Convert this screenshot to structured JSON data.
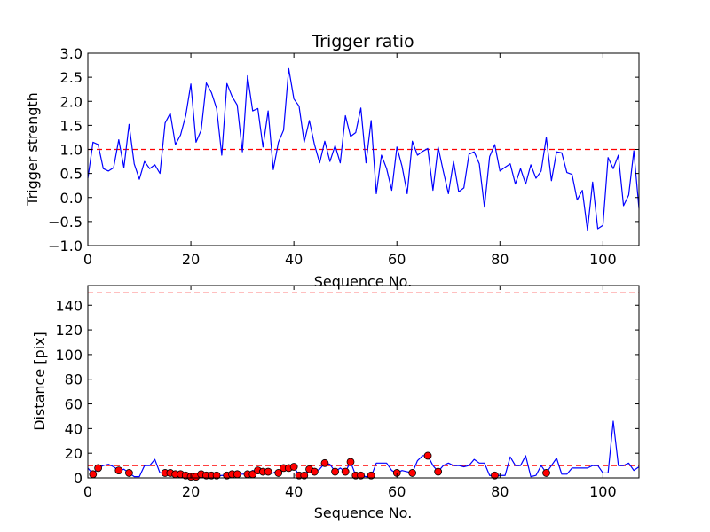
{
  "colors": {
    "line": "#0000ff",
    "threshold": "#ff0000",
    "marker_fill": "#ff0000",
    "marker_edge": "#000000"
  },
  "chart_data": [
    {
      "type": "line",
      "title": "Trigger ratio",
      "xlabel": "Sequence No.",
      "ylabel": "Trigger strength",
      "xlim": [
        0,
        107
      ],
      "ylim": [
        -1.0,
        3.0
      ],
      "xticks": [
        0,
        20,
        40,
        60,
        80,
        100
      ],
      "xtick_labels": [
        "0",
        "20",
        "40",
        "60",
        "80",
        "100"
      ],
      "yticks": [
        -1.0,
        -0.5,
        0.0,
        0.5,
        1.0,
        1.5,
        2.0,
        2.5,
        3.0
      ],
      "ytick_labels": [
        "−1.0",
        "−0.5",
        "0.0",
        "0.5",
        "1.0",
        "1.5",
        "2.0",
        "2.5",
        "3.0"
      ],
      "threshold": 1.0,
      "series": [
        {
          "name": "Trigger strength",
          "x": [
            0,
            1,
            2,
            3,
            4,
            5,
            6,
            7,
            8,
            9,
            10,
            11,
            12,
            13,
            14,
            15,
            16,
            17,
            18,
            19,
            20,
            21,
            22,
            23,
            24,
            25,
            26,
            27,
            28,
            29,
            30,
            31,
            32,
            33,
            34,
            35,
            36,
            37,
            38,
            39,
            40,
            41,
            42,
            43,
            44,
            45,
            46,
            47,
            48,
            49,
            50,
            51,
            52,
            53,
            54,
            55,
            56,
            57,
            58,
            59,
            60,
            61,
            62,
            63,
            64,
            65,
            66,
            67,
            68,
            69,
            70,
            71,
            72,
            73,
            74,
            75,
            76,
            77,
            78,
            79,
            80,
            81,
            82,
            83,
            84,
            85,
            86,
            87,
            88,
            89,
            90,
            91,
            92,
            93,
            94,
            95,
            96,
            97,
            98,
            99,
            100,
            101,
            102,
            103,
            104,
            105,
            106,
            107
          ],
          "values": [
            0.4,
            1.15,
            1.1,
            0.6,
            0.55,
            0.62,
            1.2,
            0.62,
            1.52,
            0.7,
            0.38,
            0.75,
            0.6,
            0.68,
            0.5,
            1.55,
            1.75,
            1.1,
            1.3,
            1.7,
            2.36,
            1.15,
            1.4,
            2.38,
            2.18,
            1.85,
            0.88,
            2.37,
            2.1,
            1.92,
            0.95,
            2.53,
            1.8,
            1.85,
            1.05,
            1.8,
            0.58,
            1.15,
            1.4,
            2.68,
            2.05,
            1.9,
            1.15,
            1.6,
            1.1,
            0.72,
            1.17,
            0.75,
            1.08,
            0.72,
            1.7,
            1.27,
            1.35,
            1.86,
            0.72,
            1.6,
            0.08,
            0.88,
            0.6,
            0.15,
            1.05,
            0.65,
            0.08,
            1.17,
            0.88,
            0.96,
            1.02,
            0.15,
            1.05,
            0.55,
            0.08,
            0.75,
            0.12,
            0.2,
            0.9,
            0.95,
            0.7,
            -0.2,
            0.85,
            1.1,
            0.55,
            0.63,
            0.7,
            0.28,
            0.6,
            0.28,
            0.68,
            0.4,
            0.55,
            1.25,
            0.35,
            0.95,
            0.93,
            0.52,
            0.48,
            -0.05,
            0.15,
            -0.68,
            0.32,
            -0.65,
            -0.58,
            0.83,
            0.6,
            0.88,
            -0.17,
            0.05,
            0.97,
            -0.23
          ]
        }
      ]
    },
    {
      "type": "line",
      "title": "",
      "xlabel": "Sequence No.",
      "ylabel": "Distance [pix]",
      "xlim": [
        0,
        107
      ],
      "ylim": [
        0,
        156
      ],
      "xticks": [
        0,
        20,
        40,
        60,
        80,
        100
      ],
      "xtick_labels": [
        "0",
        "20",
        "40",
        "60",
        "80",
        "100"
      ],
      "yticks": [
        0,
        20,
        40,
        60,
        80,
        100,
        120,
        140
      ],
      "ytick_labels": [
        "0",
        "20",
        "40",
        "60",
        "80",
        "100",
        "120",
        "140"
      ],
      "thresholds": [
        150,
        10
      ],
      "series": [
        {
          "name": "Distance",
          "x": [
            0,
            1,
            2,
            3,
            4,
            5,
            6,
            7,
            8,
            9,
            10,
            11,
            12,
            13,
            14,
            15,
            16,
            17,
            18,
            19,
            20,
            21,
            22,
            23,
            24,
            25,
            26,
            27,
            28,
            29,
            30,
            31,
            32,
            33,
            34,
            35,
            36,
            37,
            38,
            39,
            40,
            41,
            42,
            43,
            44,
            45,
            46,
            47,
            48,
            49,
            50,
            51,
            52,
            53,
            54,
            55,
            56,
            57,
            58,
            59,
            60,
            61,
            62,
            63,
            64,
            65,
            66,
            67,
            68,
            69,
            70,
            71,
            72,
            73,
            74,
            75,
            76,
            77,
            78,
            79,
            80,
            81,
            82,
            83,
            84,
            85,
            86,
            87,
            88,
            89,
            90,
            91,
            92,
            93,
            94,
            95,
            96,
            97,
            98,
            99,
            100,
            101,
            102,
            103,
            104,
            105,
            106,
            107
          ],
          "values": [
            8,
            3,
            8,
            10,
            11,
            9,
            6,
            7,
            4,
            1,
            1,
            10,
            10,
            15,
            4,
            4,
            3,
            3,
            2,
            1,
            1,
            3,
            2,
            2,
            2,
            1,
            2,
            2,
            3,
            3,
            3,
            3,
            6,
            5,
            5,
            3,
            4,
            6,
            8,
            9,
            9,
            2,
            2,
            7,
            5,
            7,
            12,
            11,
            5,
            8,
            5,
            13,
            2,
            2,
            1,
            1,
            12,
            12,
            12,
            6,
            4,
            6,
            5,
            4,
            14,
            18,
            18,
            10,
            5,
            10,
            12,
            10,
            10,
            9,
            10,
            15,
            12,
            12,
            2,
            2,
            2,
            2,
            17,
            10,
            10,
            18,
            1,
            2,
            10,
            4,
            10,
            16,
            3,
            3,
            8,
            8,
            8,
            8,
            10,
            10,
            4,
            4,
            46,
            10,
            10,
            12,
            6,
            9
          ]
        }
      ],
      "markers": {
        "x": [
          1,
          2,
          6,
          8,
          15,
          16,
          17,
          18,
          19,
          20,
          21,
          22,
          23,
          24,
          25,
          27,
          28,
          29,
          31,
          32,
          33,
          34,
          35,
          37,
          38,
          39,
          40,
          41,
          42,
          43,
          44,
          46,
          48,
          50,
          51,
          52,
          53,
          55,
          60,
          63,
          66,
          68,
          79,
          89
        ],
        "values": [
          3,
          8,
          6,
          4,
          4,
          4,
          3,
          3,
          2,
          1,
          1,
          3,
          2,
          2,
          2,
          2,
          3,
          3,
          3,
          3,
          6,
          5,
          5,
          4,
          8,
          8,
          9,
          2,
          2,
          7,
          5,
          12,
          5,
          5,
          13,
          2,
          2,
          2,
          4,
          4,
          18,
          5,
          2,
          4
        ]
      }
    }
  ]
}
